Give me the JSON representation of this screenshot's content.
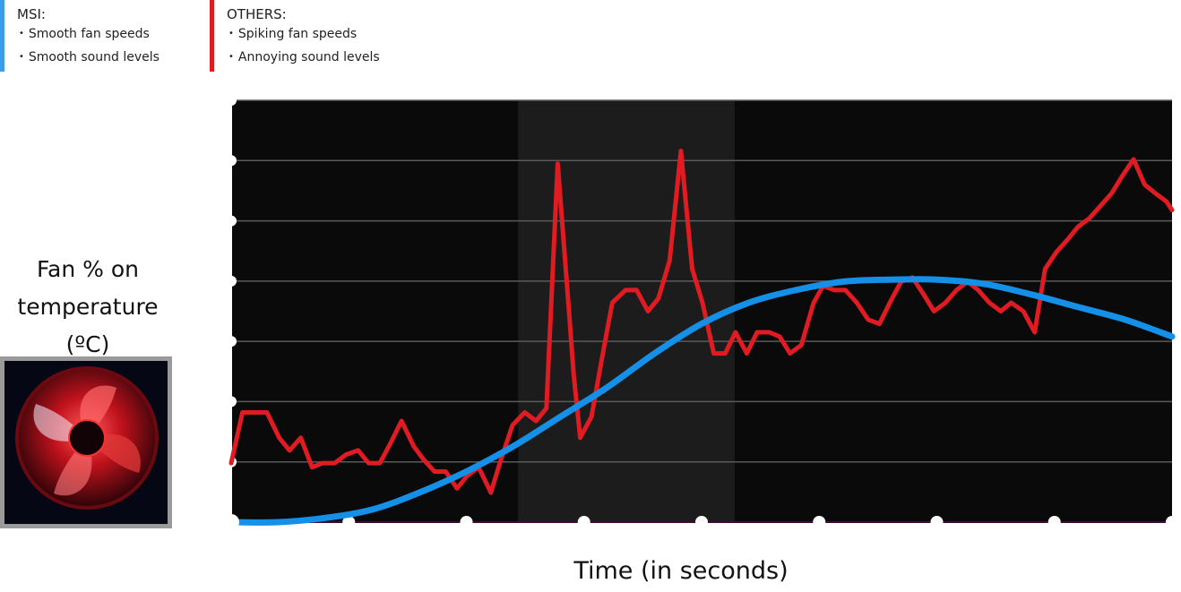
{
  "legend": {
    "msi": {
      "title": "MSI:",
      "items": [
        "Smooth fan speeds",
        "Smooth sound levels"
      ],
      "color": "#3a9de8"
    },
    "others": {
      "title": "OTHERS:",
      "items": [
        "Spiking fan speeds",
        "Annoying sound levels"
      ],
      "color": "#e01b22"
    }
  },
  "thumbnail": {
    "icon": "red-fan-icon"
  },
  "chart_data": {
    "type": "line",
    "xlabel": "Time (in seconds)",
    "ylabel_lines": [
      "Fan % on",
      "temperature (ºC)"
    ],
    "xlim": [
      0,
      100
    ],
    "ylim": [
      0,
      100
    ],
    "grid": true,
    "background": "#0b0a0a",
    "highlight_band": {
      "x": [
        30.5,
        53.5
      ],
      "color": "#1d1c1c"
    },
    "series": [
      {
        "color": "#e01b22",
        "x": [
          0,
          1.2,
          2.3,
          3.8,
          5.1,
          6.2,
          7.4,
          8.6,
          9.7,
          11.0,
          12.2,
          13.5,
          14.6,
          15.8,
          17.0,
          18.1,
          19.4,
          20.4,
          21.6,
          22.8,
          24.0,
          25.1,
          26.3,
          27.6,
          28.7,
          29.9,
          31.2,
          32.4,
          33.5,
          34.7,
          35.9,
          36.4,
          37.1,
          38.3,
          39.5,
          40.5,
          41.9,
          43.1,
          44.3,
          45.4,
          46.6,
          47.8,
          49.0,
          50.1,
          51.3,
          52.5,
          53.6,
          54.8,
          55.9,
          57.2,
          58.3,
          59.4,
          60.6,
          61.9,
          62.9,
          64.1,
          65.3,
          66.5,
          67.7,
          68.9,
          70.0,
          71.2,
          72.4,
          73.6,
          74.7,
          75.9,
          77.1,
          78.3,
          79.4,
          80.6,
          81.8,
          82.9,
          84.2,
          85.4,
          86.5,
          87.7,
          88.9,
          90.0,
          91.2,
          92.4,
          93.6,
          94.7,
          95.9,
          97.1,
          98.2,
          99.4,
          100
        ],
        "y": [
          14,
          26,
          26,
          26,
          20,
          17,
          20,
          13,
          14,
          14,
          16,
          17,
          14,
          14,
          19,
          24,
          18,
          15,
          12,
          12,
          8,
          11,
          13,
          7,
          15,
          23,
          26,
          24,
          27,
          85,
          50,
          35,
          20,
          25,
          40,
          52,
          55,
          55,
          50,
          53,
          62,
          88,
          60,
          52,
          40,
          40,
          45,
          40,
          45,
          45,
          44,
          40,
          42,
          52,
          56,
          55,
          55,
          52,
          48,
          47,
          52,
          57,
          58,
          54,
          50,
          52,
          55,
          57,
          55,
          52,
          50,
          52,
          50,
          45,
          60,
          64,
          67,
          70,
          72,
          75,
          78,
          82,
          86,
          80,
          78,
          76,
          74
        ]
      },
      {
        "color": "#1490e8",
        "x": [
          0,
          5,
          10,
          15,
          20,
          25,
          30,
          35,
          40,
          45,
          50,
          55,
          60,
          65,
          70,
          75,
          80,
          85,
          90,
          95,
          100
        ],
        "y": [
          0,
          0,
          1,
          3,
          7,
          12,
          18,
          25,
          32,
          40,
          47,
          52,
          55,
          57,
          57.5,
          57.5,
          56.5,
          54,
          51,
          48,
          44
        ]
      }
    ]
  }
}
